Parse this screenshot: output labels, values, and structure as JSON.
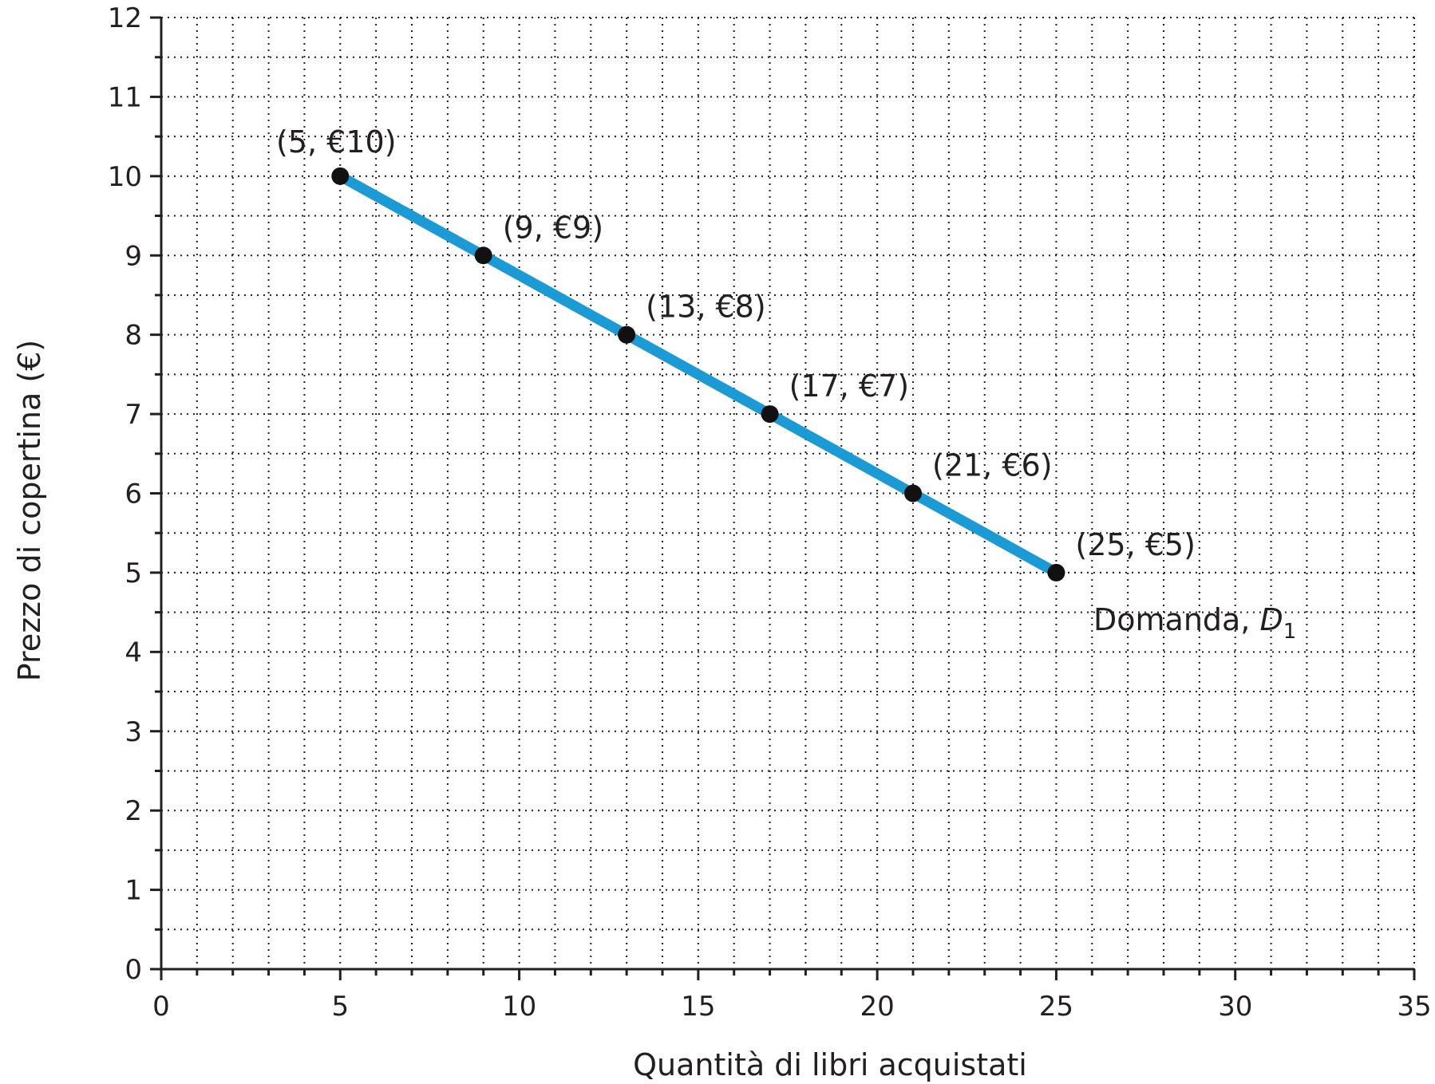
{
  "chart_data": {
    "type": "line",
    "xlabel": "Quantità di libri acquistati",
    "ylabel": "Prezzo di copertina (€)",
    "xlim": [
      0,
      35
    ],
    "ylim": [
      0,
      12
    ],
    "x_ticks": [
      0,
      5,
      10,
      15,
      20,
      25,
      30,
      35
    ],
    "y_ticks": [
      0,
      1,
      2,
      3,
      4,
      5,
      6,
      7,
      8,
      9,
      10,
      11,
      12
    ],
    "grid": true,
    "minor_grid_step_x": 1,
    "minor_grid_step_y": 0.5,
    "series": [
      {
        "name": "Domanda, D1",
        "color": "#1b9ad6",
        "points": [
          {
            "x": 5,
            "y": 10,
            "label": "(5, €10)"
          },
          {
            "x": 9,
            "y": 9,
            "label": "(9, €9)"
          },
          {
            "x": 13,
            "y": 8,
            "label": "(13, €8)"
          },
          {
            "x": 17,
            "y": 7,
            "label": "(17, €7)"
          },
          {
            "x": 21,
            "y": 6,
            "label": "(21, €6)"
          },
          {
            "x": 25,
            "y": 5,
            "label": "(25, €5)"
          }
        ]
      }
    ],
    "curve_label": {
      "text": "Domanda, ",
      "italic": "D",
      "subscript": "1"
    },
    "marker_color": "#111111",
    "axis_color": "#231f20"
  }
}
